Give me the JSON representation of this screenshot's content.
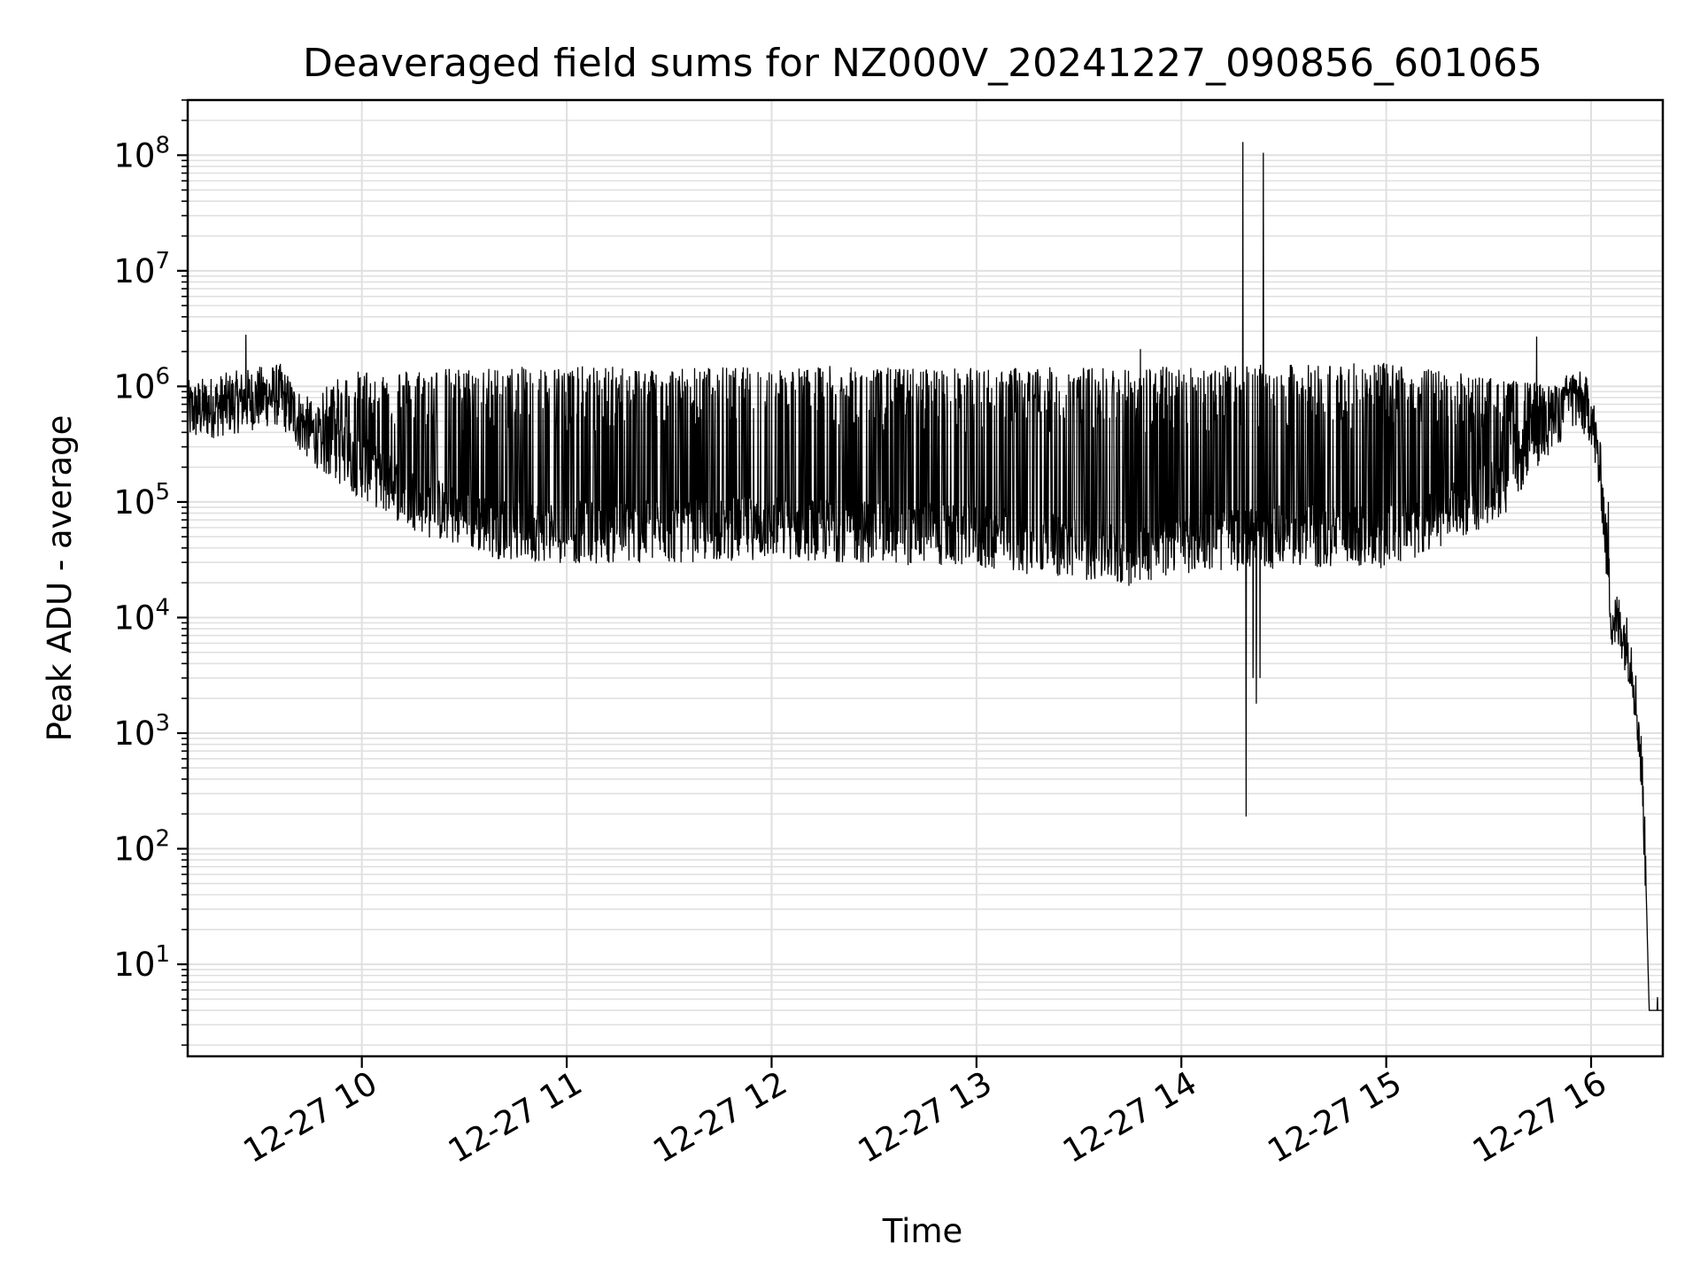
{
  "chart_data": {
    "type": "line",
    "title": "Deaveraged field sums for NZ000V_20241227_090856_601065",
    "xlabel": "Time",
    "ylabel": "Peak ADU - average",
    "yscale": "log",
    "ylim": [
      1.6,
      300000000
    ],
    "xlim": [
      "2024-12-27 09:09",
      "2024-12-27 16:21"
    ],
    "grid": true,
    "line_color": "#000000",
    "grid_color": "#e0e0e0",
    "x_ticks": [
      {
        "label": "12-27 10",
        "time": "2024-12-27 10:00"
      },
      {
        "label": "12-27 11",
        "time": "2024-12-27 11:00"
      },
      {
        "label": "12-27 12",
        "time": "2024-12-27 12:00"
      },
      {
        "label": "12-27 13",
        "time": "2024-12-27 13:00"
      },
      {
        "label": "12-27 14",
        "time": "2024-12-27 14:00"
      },
      {
        "label": "12-27 15",
        "time": "2024-12-27 15:00"
      },
      {
        "label": "12-27 16",
        "time": "2024-12-27 16:00"
      }
    ],
    "y_ticks": [
      {
        "base": "10",
        "exp": "1",
        "value": 10
      },
      {
        "base": "10",
        "exp": "2",
        "value": 100
      },
      {
        "base": "10",
        "exp": "3",
        "value": 1000
      },
      {
        "base": "10",
        "exp": "4",
        "value": 10000
      },
      {
        "base": "10",
        "exp": "5",
        "value": 100000
      },
      {
        "base": "10",
        "exp": "6",
        "value": 1000000
      },
      {
        "base": "10",
        "exp": "7",
        "value": 10000000
      },
      {
        "base": "10",
        "exp": "8",
        "value": 100000000
      }
    ],
    "series": [
      {
        "baseline": [
          [
            "2024-12-27 09:09",
            600000
          ],
          [
            "2024-12-27 09:20",
            700000
          ],
          [
            "2024-12-27 09:30",
            800000
          ],
          [
            "2024-12-27 09:36",
            850000
          ],
          [
            "2024-12-27 09:42",
            500000
          ],
          [
            "2024-12-27 09:50",
            300000
          ],
          [
            "2024-12-27 10:00",
            200000
          ],
          [
            "2024-12-27 10:10",
            130000
          ],
          [
            "2024-12-27 10:20",
            90000
          ],
          [
            "2024-12-27 10:40",
            60000
          ],
          [
            "2024-12-27 11:00",
            55000
          ],
          [
            "2024-12-27 11:30",
            55000
          ],
          [
            "2024-12-27 12:00",
            60000
          ],
          [
            "2024-12-27 12:30",
            55000
          ],
          [
            "2024-12-27 13:00",
            50000
          ],
          [
            "2024-12-27 13:30",
            40000
          ],
          [
            "2024-12-27 13:45",
            35000
          ],
          [
            "2024-12-27 14:00",
            45000
          ],
          [
            "2024-12-27 14:30",
            50000
          ],
          [
            "2024-12-27 15:00",
            50000
          ],
          [
            "2024-12-27 15:20",
            80000
          ],
          [
            "2024-12-27 15:35",
            150000
          ],
          [
            "2024-12-27 15:45",
            400000
          ],
          [
            "2024-12-27 15:55",
            800000
          ],
          [
            "2024-12-27 16:00",
            600000
          ],
          [
            "2024-12-27 16:03",
            150000
          ],
          [
            "2024-12-27 16:06",
            10000
          ],
          [
            "2024-12-27 16:09",
            8000
          ],
          [
            "2024-12-27 16:12",
            4000
          ],
          [
            "2024-12-27 16:14",
            1000
          ],
          [
            "2024-12-27 16:15",
            400
          ],
          [
            "2024-12-27 16:16",
            60
          ],
          [
            "2024-12-27 16:17",
            4
          ],
          [
            "2024-12-27 16:21",
            4
          ]
        ],
        "spike_top": [
          [
            "2024-12-27 09:09",
            900000
          ],
          [
            "2024-12-27 09:42",
            900000
          ],
          [
            "2024-12-27 10:00",
            1400000
          ],
          [
            "2024-12-27 11:00",
            1500000
          ],
          [
            "2024-12-27 13:00",
            1450000
          ],
          [
            "2024-12-27 14:00",
            1500000
          ],
          [
            "2024-12-27 15:00",
            1600000
          ],
          [
            "2024-12-27 15:50",
            1000000
          ]
        ],
        "spike_ranges": [
          [
            "2024-12-27 09:48",
            "2024-12-27 15:55"
          ]
        ],
        "features": [
          {
            "time": "2024-12-27 09:26",
            "value": 2800000,
            "kind": "spike"
          },
          {
            "time": "2024-12-27 10:48",
            "value": 1400000,
            "kind": "spike"
          },
          {
            "time": "2024-12-27 12:17",
            "value": 1500000,
            "kind": "spike"
          },
          {
            "time": "2024-12-27 13:48",
            "value": 2100000,
            "kind": "spike"
          },
          {
            "time": "2024-12-27 14:18",
            "value": 130000000,
            "kind": "spike"
          },
          {
            "time": "2024-12-27 14:19",
            "value": 190,
            "kind": "dip"
          },
          {
            "time": "2024-12-27 14:21",
            "value": 3000,
            "kind": "level"
          },
          {
            "time": "2024-12-27 14:22",
            "value": 1800,
            "kind": "level"
          },
          {
            "time": "2024-12-27 14:23",
            "value": 3000,
            "kind": "level"
          },
          {
            "time": "2024-12-27 14:24",
            "value": 105000000,
            "kind": "spike"
          },
          {
            "time": "2024-12-27 15:44",
            "value": 2700000,
            "kind": "spike"
          },
          {
            "time": "2024-12-27 16:05",
            "value": 100000,
            "kind": "spike"
          }
        ]
      }
    ]
  }
}
